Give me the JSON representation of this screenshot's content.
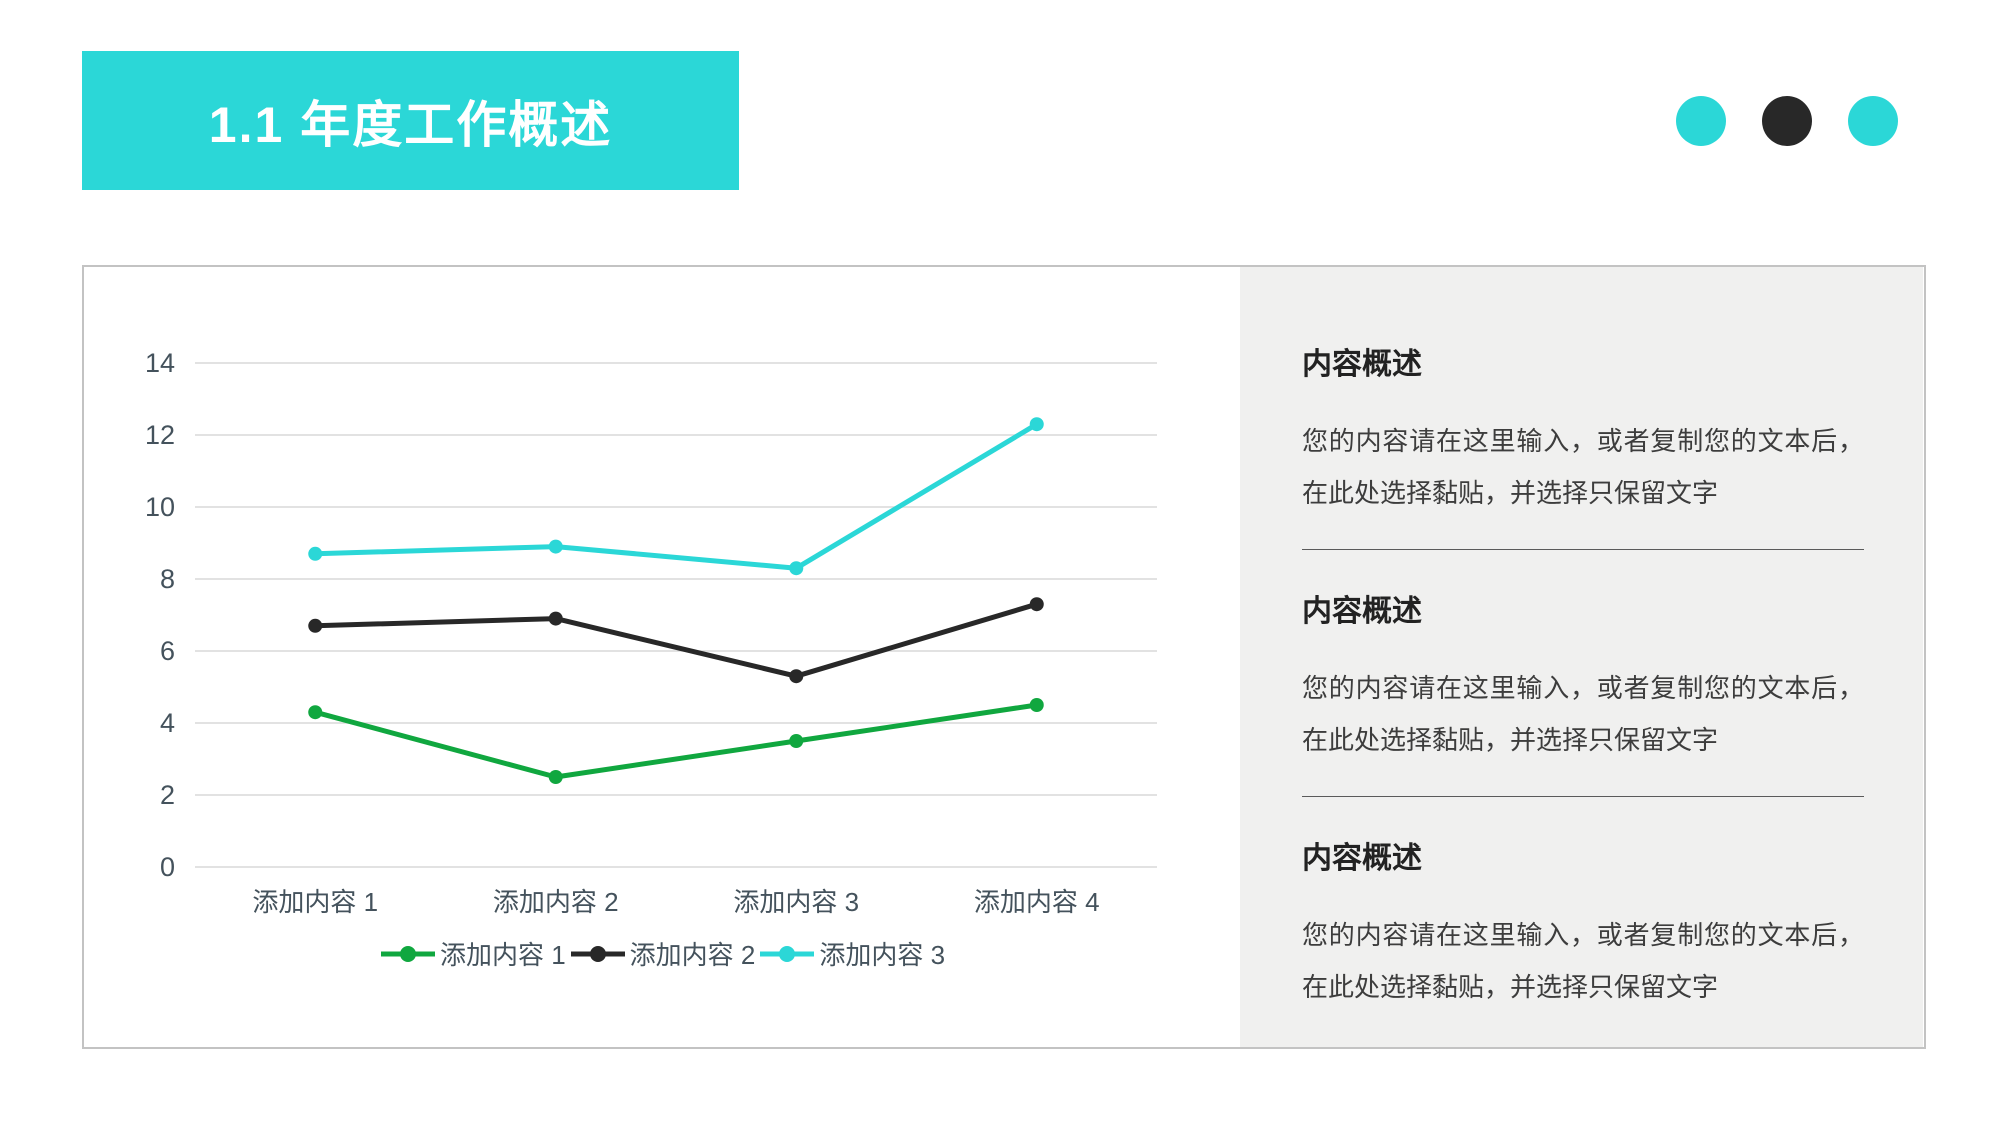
{
  "slide_title": "1.1 年度工作概述",
  "theme": {
    "accent": "#2BD7D7",
    "dark": "#282828",
    "axis_text_color": "#44525C",
    "grid_color": "#D9D9D9",
    "panel_bg": "#F0F0EF",
    "card_border": "#C3C3C3",
    "body_text_color": "#3D3D3D",
    "divider_color": "#5A5A5A",
    "title_text_color": "#FFFFFF"
  },
  "decoration": {
    "dot_colors": [
      "#2BD7D7",
      "#282828",
      "#2BD7D7"
    ]
  },
  "chart_data": {
    "type": "line",
    "title": "",
    "xlabel": "",
    "ylabel": "",
    "categories": [
      "添加内容 1",
      "添加内容 2",
      "添加内容 3",
      "添加内容 4"
    ],
    "series": [
      {
        "name": "添加内容 1",
        "color": "#10A73F",
        "values": [
          4.3,
          2.5,
          3.5,
          4.5
        ]
      },
      {
        "name": "添加内容 2",
        "color": "#282828",
        "values": [
          6.7,
          6.9,
          5.3,
          7.3
        ]
      },
      {
        "name": "添加内容 3",
        "color": "#2BD7D7",
        "values": [
          8.7,
          8.9,
          8.3,
          12.3
        ]
      }
    ],
    "ylim": [
      0,
      14
    ],
    "ytick_step": 2,
    "yticks": [
      0,
      2,
      4,
      6,
      8,
      10,
      12,
      14
    ],
    "grid": true,
    "legend_position": "bottom",
    "marker": "circle"
  },
  "panel": {
    "sections": [
      {
        "heading": "内容概述",
        "body": "您的内容请在这里输入，或者复制您的文本后，在此处选择黏贴，并选择只保留文字"
      },
      {
        "heading": "内容概述",
        "body": "您的内容请在这里输入，或者复制您的文本后，在此处选择黏贴，并选择只保留文字"
      },
      {
        "heading": "内容概述",
        "body": "您的内容请在这里输入，或者复制您的文本后，在此处选择黏贴，并选择只保留文字"
      }
    ]
  }
}
